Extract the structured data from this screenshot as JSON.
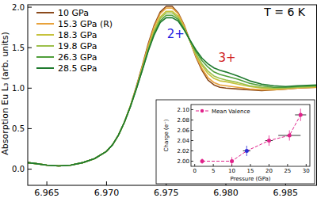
{
  "chart_data": [
    {
      "type": "line",
      "title": "T = 6 K",
      "y_label": "Absorption Eu L₃ (arb. units)",
      "x": [
        6.9634,
        6.964,
        6.965,
        6.966,
        6.967,
        6.968,
        6.969,
        6.97,
        6.9705,
        6.971,
        6.9715,
        6.972,
        6.9725,
        6.973,
        6.9735,
        6.974,
        6.9745,
        6.975,
        6.9755,
        6.976,
        6.9765,
        6.977,
        6.9775,
        6.978,
        6.9785,
        6.979,
        6.9795,
        6.98,
        6.981,
        6.982,
        6.983,
        6.984,
        6.985,
        6.986,
        6.9876
      ],
      "xlim": [
        6.9634,
        6.9876
      ],
      "xticks": [
        6.965,
        {
          "value": 6.97,
          "label": "6.970"
        },
        6.975,
        {
          "value": 6.98,
          "label": "6.980"
        },
        6.985
      ],
      "ylim": [
        -0.2,
        2.03
      ],
      "yticks": [
        {
          "value": 0,
          "label": "0.0"
        },
        {
          "value": 0.5,
          "label": "0.5"
        },
        {
          "value": 1,
          "label": "1.0"
        },
        {
          "value": 1.5,
          "label": "1.5"
        },
        {
          "value": 2,
          "label": "2.0"
        }
      ],
      "legend": "upper left",
      "series": [
        {
          "name": "10 GPa",
          "color": "#8b4a1c",
          "values": [
            0.08,
            0.07,
            0.05,
            0.04,
            0.05,
            0.08,
            0.13,
            0.22,
            0.3,
            0.42,
            0.58,
            0.78,
            1.02,
            1.28,
            1.55,
            1.78,
            1.94,
            2.01,
            2.01,
            1.93,
            1.78,
            1.58,
            1.38,
            1.22,
            1.1,
            1.04,
            1.01,
            1.0,
            0.99,
            0.98,
            0.97,
            0.98,
            0.99,
            1.0,
            1.01
          ]
        },
        {
          "name": "15.3 GPa (R)",
          "color": "#e8a23a",
          "values": [
            0.08,
            0.07,
            0.05,
            0.04,
            0.05,
            0.08,
            0.13,
            0.22,
            0.3,
            0.42,
            0.58,
            0.78,
            1.01,
            1.27,
            1.53,
            1.76,
            1.92,
            1.99,
            1.99,
            1.92,
            1.77,
            1.58,
            1.39,
            1.24,
            1.13,
            1.07,
            1.04,
            1.03,
            1.01,
            0.99,
            0.98,
            0.98,
            0.99,
            1.0,
            1.01
          ]
        },
        {
          "name": "18.3 GPa",
          "color": "#c6c23c",
          "values": [
            0.08,
            0.07,
            0.05,
            0.04,
            0.05,
            0.08,
            0.13,
            0.22,
            0.3,
            0.42,
            0.58,
            0.78,
            1.0,
            1.25,
            1.5,
            1.72,
            1.88,
            1.95,
            1.95,
            1.89,
            1.75,
            1.58,
            1.41,
            1.28,
            1.18,
            1.12,
            1.09,
            1.08,
            1.05,
            1.02,
            1.0,
            0.99,
            1.0,
            1.01,
            1.02
          ]
        },
        {
          "name": "19.8 GPa",
          "color": "#9cc04a",
          "values": [
            0.08,
            0.07,
            0.05,
            0.04,
            0.05,
            0.08,
            0.13,
            0.22,
            0.3,
            0.42,
            0.58,
            0.78,
            1.0,
            1.24,
            1.49,
            1.7,
            1.86,
            1.93,
            1.93,
            1.87,
            1.74,
            1.58,
            1.42,
            1.3,
            1.21,
            1.15,
            1.12,
            1.1,
            1.07,
            1.03,
            1.01,
            1.0,
            1.0,
            1.01,
            1.02
          ]
        },
        {
          "name": "26.3 GPa",
          "color": "#4f9e3a",
          "values": [
            0.08,
            0.07,
            0.05,
            0.04,
            0.05,
            0.08,
            0.13,
            0.22,
            0.3,
            0.42,
            0.58,
            0.77,
            0.99,
            1.23,
            1.47,
            1.68,
            1.83,
            1.9,
            1.9,
            1.85,
            1.73,
            1.59,
            1.45,
            1.34,
            1.26,
            1.2,
            1.17,
            1.15,
            1.11,
            1.06,
            1.03,
            1.01,
            1.01,
            1.02,
            1.03
          ]
        },
        {
          "name": "28.5 GPa",
          "color": "#1f7a2e",
          "values": [
            0.08,
            0.07,
            0.05,
            0.04,
            0.05,
            0.08,
            0.13,
            0.22,
            0.3,
            0.42,
            0.58,
            0.77,
            0.99,
            1.22,
            1.46,
            1.66,
            1.81,
            1.87,
            1.87,
            1.83,
            1.72,
            1.59,
            1.47,
            1.37,
            1.3,
            1.25,
            1.22,
            1.2,
            1.15,
            1.09,
            1.05,
            1.03,
            1.02,
            1.03,
            1.04
          ]
        }
      ],
      "annotations": [
        {
          "text": "2+",
          "x": 6.9758,
          "y": 1.62,
          "color": "#1c1ce0"
        },
        {
          "text": "3+",
          "x": 6.9801,
          "y": 1.33,
          "color": "#d01c1c"
        }
      ]
    },
    {
      "type": "scatter",
      "x_label": "Pressure (GPa)",
      "y_label": "Charge (e⁻)",
      "legend": "upper left",
      "xlim": [
        -1,
        31
      ],
      "xticks": [
        0,
        5,
        10,
        15,
        20,
        25,
        30
      ],
      "ylim": [
        1.99,
        2.11
      ],
      "yticks": [
        {
          "value": 2,
          "label": "2.00"
        },
        {
          "value": 2.02,
          "label": "2.02"
        },
        {
          "value": 2.04,
          "label": "2.04"
        },
        {
          "value": 2.06,
          "label": "2.06"
        },
        {
          "value": 2.08,
          "label": "2.08"
        },
        {
          "value": 2.1,
          "label": "2.10"
        }
      ],
      "series": [
        {
          "name": "Mean Valence",
          "color": "#e0218a",
          "marker": "circle",
          "line_style": "dashed",
          "x": [
            2,
            10,
            14,
            20,
            25.5,
            28.5
          ],
          "values": [
            2.0,
            2.0,
            2.02,
            2.04,
            2.05,
            2.09
          ],
          "errors": [
            0.005,
            0.008,
            0.01,
            0.01,
            0.01,
            0.012
          ],
          "x_errors": [
            0,
            0,
            1,
            1,
            3,
            1.5
          ],
          "colors": [
            "#e0218a",
            "#e0218a",
            "#2b2bd6",
            "#e0218a",
            "#e0218a",
            "#e0218a"
          ]
        }
      ]
    }
  ]
}
